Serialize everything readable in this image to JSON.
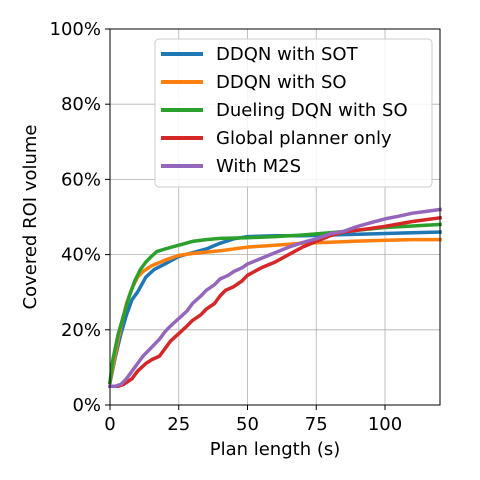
{
  "chart_data": {
    "type": "line",
    "xlabel": "Plan length (s)",
    "ylabel": "Covered ROI volume",
    "xlim": [
      0,
      120
    ],
    "ylim": [
      0,
      100
    ],
    "x_ticks": [
      0,
      25,
      50,
      75,
      100
    ],
    "x_tick_labels": [
      "0",
      "25",
      "50",
      "75",
      "100"
    ],
    "y_ticks": [
      0,
      20,
      40,
      60,
      80,
      100
    ],
    "y_tick_labels": [
      "0%",
      "20%",
      "40%",
      "60%",
      "80%",
      "100%"
    ],
    "grid": true,
    "legend_position": "top-right",
    "series": [
      {
        "name": "DDQN with SOT",
        "color": "#1f77b4",
        "x": [
          0,
          2,
          4,
          6,
          8,
          10,
          13,
          16,
          20,
          25,
          30,
          35,
          40,
          45,
          50,
          60,
          70,
          80,
          90,
          100,
          110,
          120
        ],
        "y": [
          6,
          13,
          19,
          24,
          28,
          30,
          34,
          36,
          37.5,
          39.5,
          40.5,
          41.5,
          43,
          44.2,
          44.8,
          45,
          45,
          45.2,
          45.4,
          45.6,
          45.8,
          46
        ]
      },
      {
        "name": "DDQN with SO",
        "color": "#ff7f0e",
        "x": [
          0,
          2,
          4,
          6,
          8,
          10,
          12,
          15,
          20,
          25,
          30,
          40,
          50,
          60,
          70,
          80,
          90,
          100,
          110,
          120
        ],
        "y": [
          6,
          14,
          21,
          27,
          31,
          34,
          35.5,
          37,
          38.5,
          39.8,
          40.3,
          41,
          42,
          42.5,
          43,
          43.3,
          43.6,
          43.8,
          44,
          44
        ]
      },
      {
        "name": "Dueling DQN with SO",
        "color": "#2ca02c",
        "x": [
          0,
          1,
          3,
          5,
          7,
          9,
          11,
          13,
          15,
          17,
          20,
          25,
          30,
          35,
          40,
          50,
          60,
          70,
          80,
          90,
          100,
          110,
          120
        ],
        "y": [
          6,
          12,
          19,
          24,
          29,
          33,
          36,
          38,
          39.5,
          40.8,
          41.5,
          42.5,
          43.5,
          44,
          44.3,
          44.5,
          44.8,
          45.2,
          45.8,
          46.5,
          47.2,
          47.6,
          48
        ]
      },
      {
        "name": "Global planner only",
        "color": "#d62728",
        "x": [
          0,
          3,
          5,
          8,
          10,
          13,
          15,
          18,
          20,
          22,
          25,
          28,
          30,
          33,
          35,
          38,
          40,
          42,
          45,
          48,
          50,
          55,
          60,
          65,
          70,
          75,
          80,
          85,
          90,
          95,
          100,
          110,
          120
        ],
        "y": [
          5,
          5,
          5.5,
          7,
          9,
          11,
          12,
          13,
          15,
          17,
          19,
          21,
          22.5,
          24,
          25.5,
          27,
          29,
          30.5,
          31.5,
          33,
          34.5,
          36.5,
          38,
          40,
          42,
          43.5,
          45,
          46,
          46.5,
          47,
          47.5,
          48.8,
          49.8
        ]
      },
      {
        "name": "With M2S",
        "color": "#9467bd",
        "x": [
          0,
          2,
          4,
          6,
          8,
          10,
          12,
          14,
          16,
          18,
          20,
          22,
          25,
          28,
          30,
          33,
          35,
          38,
          40,
          43,
          45,
          48,
          50,
          55,
          60,
          65,
          70,
          75,
          80,
          85,
          90,
          95,
          100,
          105,
          110,
          115,
          120
        ],
        "y": [
          5,
          5,
          5.5,
          7,
          9,
          11,
          13,
          14.5,
          16,
          17.5,
          19.5,
          21,
          23,
          25,
          27,
          29,
          30.5,
          32,
          33.5,
          34.5,
          35.5,
          36.5,
          37.5,
          39,
          40.5,
          42,
          43.2,
          44.2,
          45.5,
          46.2,
          47.5,
          48.5,
          49.5,
          50.2,
          51,
          51.5,
          52
        ]
      }
    ]
  }
}
